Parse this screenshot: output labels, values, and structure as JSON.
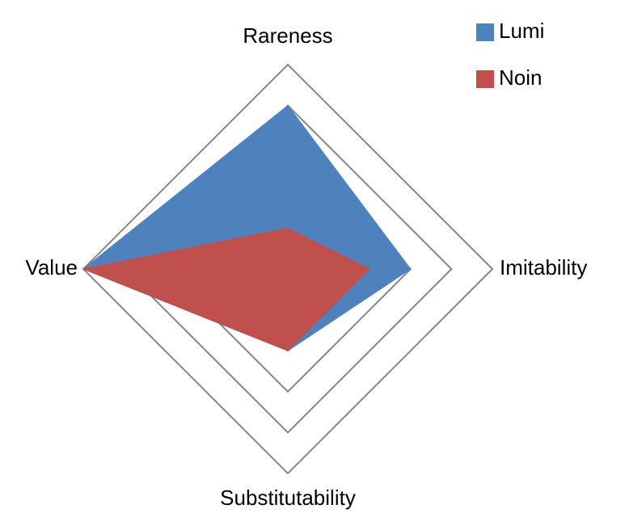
{
  "chart_data": {
    "type": "radar",
    "categories": [
      "Rareness",
      "Imitability",
      "Substitutability",
      "Value"
    ],
    "series": [
      {
        "name": "Lumi",
        "color": "#4f81bd",
        "values": [
          4,
          3,
          2,
          5
        ]
      },
      {
        "name": "Noin",
        "color": "#c0504d",
        "values": [
          1,
          2,
          2,
          5
        ]
      }
    ],
    "ylim": [
      0,
      5
    ],
    "yticks": [
      0,
      1,
      2,
      3,
      4,
      5
    ],
    "grid": true,
    "legend": "top-right"
  }
}
